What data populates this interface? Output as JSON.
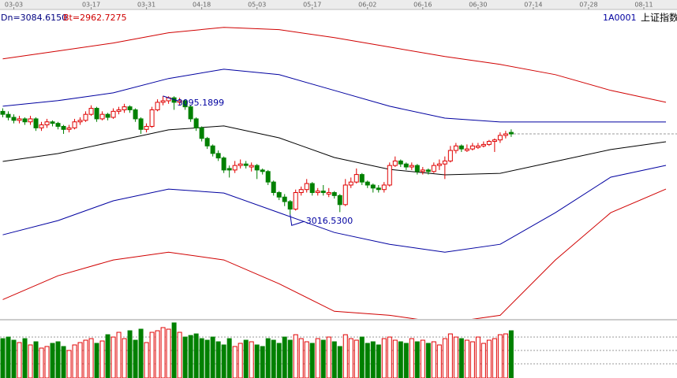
{
  "chart_data": {
    "type": "candlestick",
    "symbol": "1A0001",
    "name": "上证指数",
    "indicators": [
      {
        "label": "Dn=3084.6150",
        "color": "#000080"
      },
      {
        "label": "Bt=2962.7275",
        "color": "#d00000"
      }
    ],
    "xlim": [
      -0.5,
      122
    ],
    "xticks": [
      {
        "value": 2,
        "label": "03-03"
      },
      {
        "value": 16,
        "label": "03-17"
      },
      {
        "value": 26,
        "label": "03-31"
      },
      {
        "value": 36,
        "label": "04-18"
      },
      {
        "value": 46,
        "label": "05-03"
      },
      {
        "value": 56,
        "label": "05-17"
      },
      {
        "value": 66,
        "label": "06-02"
      },
      {
        "value": 76,
        "label": "06-16"
      },
      {
        "value": 86,
        "label": "06-30"
      },
      {
        "value": 96,
        "label": "07-14"
      },
      {
        "value": 106,
        "label": "07-28"
      },
      {
        "value": 116,
        "label": "08-11"
      }
    ],
    "ylim": [
      2947,
      3159
    ],
    "up_color": "#e00000",
    "down_color": "#008000",
    "values": [
      [
        3085,
        3087,
        3081,
        3083
      ],
      [
        3083,
        3085,
        3079,
        3081
      ],
      [
        3081,
        3083,
        3077,
        3079
      ],
      [
        3079,
        3082,
        3077,
        3080
      ],
      [
        3080,
        3081,
        3076,
        3078
      ],
      [
        3078,
        3082,
        3076,
        3080
      ],
      [
        3080,
        3081,
        3072,
        3074
      ],
      [
        3074,
        3078,
        3072,
        3076
      ],
      [
        3076,
        3080,
        3074,
        3078
      ],
      [
        3078,
        3079,
        3075,
        3077
      ],
      [
        3077,
        3078,
        3073,
        3075
      ],
      [
        3075,
        3076,
        3070,
        3073
      ],
      [
        3073,
        3076,
        3071,
        3074
      ],
      [
        3074,
        3080,
        3073,
        3078
      ],
      [
        3078,
        3081,
        3076,
        3079
      ],
      [
        3079,
        3085,
        3078,
        3083
      ],
      [
        3083,
        3089,
        3082,
        3087
      ],
      [
        3087,
        3088,
        3078,
        3080
      ],
      [
        3080,
        3085,
        3079,
        3083
      ],
      [
        3083,
        3084,
        3079,
        3081
      ],
      [
        3081,
        3087,
        3080,
        3085
      ],
      [
        3085,
        3088,
        3083,
        3086
      ],
      [
        3086,
        3090,
        3084,
        3088
      ],
      [
        3088,
        3089,
        3084,
        3086
      ],
      [
        3086,
        3087,
        3078,
        3080
      ],
      [
        3080,
        3081,
        3070,
        3073
      ],
      [
        3073,
        3077,
        3071,
        3075
      ],
      [
        3075,
        3088,
        3074,
        3086
      ],
      [
        3086,
        3093,
        3085,
        3091
      ],
      [
        3091,
        3095.1899,
        3089,
        3092
      ],
      [
        3092,
        3095,
        3090,
        3094
      ],
      [
        3094,
        3095,
        3086,
        3091
      ],
      [
        3091,
        3094,
        3089,
        3092
      ],
      [
        3092,
        3093,
        3086,
        3088
      ],
      [
        3088,
        3089,
        3078,
        3080
      ],
      [
        3080,
        3081,
        3072,
        3074
      ],
      [
        3074,
        3075,
        3065,
        3067
      ],
      [
        3067,
        3068,
        3060,
        3062
      ],
      [
        3062,
        3063,
        3055,
        3057
      ],
      [
        3057,
        3059,
        3052,
        3054
      ],
      [
        3054,
        3055,
        3044,
        3046
      ],
      [
        3047,
        3049,
        3041,
        3046
      ],
      [
        3046,
        3052,
        3044,
        3049
      ],
      [
        3049,
        3053,
        3047,
        3050
      ],
      [
        3050,
        3052,
        3047,
        3049
      ],
      [
        3048,
        3051,
        3045,
        3049
      ],
      [
        3049,
        3050,
        3040,
        3046
      ],
      [
        3046,
        3047,
        3043,
        3045
      ],
      [
        3045,
        3046,
        3036,
        3038
      ],
      [
        3038,
        3039,
        3029,
        3031
      ],
      [
        3031,
        3032,
        3026,
        3028
      ],
      [
        3028,
        3030,
        3022,
        3025
      ],
      [
        3025,
        3026,
        3016.53,
        3020
      ],
      [
        3020,
        3033,
        3019,
        3031
      ],
      [
        3031,
        3035,
        3029,
        3033
      ],
      [
        3033,
        3040,
        3031,
        3037
      ],
      [
        3037,
        3038,
        3029,
        3031
      ],
      [
        3031,
        3034,
        3029,
        3032
      ],
      [
        3032,
        3036,
        3029,
        3031
      ],
      [
        3030,
        3034,
        3028,
        3031
      ],
      [
        3031,
        3032,
        3027,
        3029
      ],
      [
        3029,
        3030,
        3018,
        3023
      ],
      [
        3023,
        3040,
        3022,
        3036
      ],
      [
        3036,
        3041,
        3034,
        3038
      ],
      [
        3038,
        3047,
        3037,
        3043
      ],
      [
        3043,
        3044,
        3036,
        3038
      ],
      [
        3038,
        3039,
        3034,
        3036
      ],
      [
        3036,
        3037,
        3031,
        3034
      ],
      [
        3034,
        3036,
        3031,
        3033
      ],
      [
        3033,
        3038,
        3031,
        3036
      ],
      [
        3036,
        3051,
        3035,
        3049
      ],
      [
        3049,
        3055,
        3048,
        3052
      ],
      [
        3052,
        3053,
        3048,
        3050
      ],
      [
        3050,
        3051,
        3046,
        3048
      ],
      [
        3048,
        3051,
        3046,
        3049
      ],
      [
        3049,
        3050,
        3043,
        3045
      ],
      [
        3045,
        3048,
        3043,
        3046
      ],
      [
        3046,
        3047,
        3043,
        3045
      ],
      [
        3045,
        3051,
        3044,
        3049
      ],
      [
        3049,
        3053,
        3046,
        3050
      ],
      [
        3050,
        3055,
        3040,
        3052
      ],
      [
        3052,
        3062,
        3051,
        3059
      ],
      [
        3059,
        3064,
        3057,
        3062
      ],
      [
        3062,
        3063,
        3058,
        3060
      ],
      [
        3059,
        3063,
        3058,
        3060
      ],
      [
        3060,
        3064,
        3059,
        3062
      ],
      [
        3061,
        3064,
        3060,
        3062
      ],
      [
        3062,
        3065,
        3061,
        3063
      ],
      [
        3063,
        3066,
        3062,
        3065
      ],
      [
        3065,
        3067,
        3058,
        3066
      ],
      [
        3066,
        3071,
        3064,
        3069
      ],
      [
        3069,
        3072,
        3067,
        3070
      ],
      [
        3071,
        3073,
        3068,
        3070
      ]
    ],
    "volume": [
      50,
      52,
      48,
      45,
      50,
      42,
      46,
      38,
      40,
      44,
      46,
      40,
      35,
      42,
      45,
      48,
      50,
      44,
      47,
      55,
      52,
      58,
      50,
      60,
      48,
      62,
      45,
      58,
      60,
      64,
      62,
      70,
      58,
      52,
      54,
      56,
      50,
      48,
      52,
      46,
      42,
      50,
      40,
      44,
      48,
      46,
      42,
      40,
      50,
      48,
      44,
      52,
      48,
      55,
      50,
      46,
      44,
      50,
      48,
      52,
      46,
      40,
      55,
      50,
      48,
      52,
      44,
      46,
      42,
      50,
      52,
      48,
      46,
      44,
      50,
      46,
      48,
      44,
      46,
      42,
      50,
      56,
      52,
      50,
      48,
      46,
      52,
      44,
      48,
      50,
      55,
      56,
      60
    ],
    "vlim": [
      0,
      72
    ],
    "vticks": [
      18,
      35,
      52
    ],
    "band_x": [
      0,
      10,
      20,
      30,
      40,
      50,
      60,
      70,
      80,
      90,
      100,
      110,
      120
    ],
    "bands": [
      {
        "color": "#d00000",
        "values": [
          3119.9,
          3125.1,
          3130.4,
          3137.2,
          3140.8,
          3139.3,
          3134.0,
          3127.7,
          3121.4,
          3116.2,
          3109.4,
          3098.9,
          3091.0
        ]
      },
      {
        "color": "#0000a0",
        "values": [
          3088.4,
          3092.1,
          3097.3,
          3106.8,
          3113.0,
          3109.4,
          3098.9,
          3088.4,
          3080.5,
          3077.9,
          3077.9,
          3077.9,
          3077.9
        ]
      },
      {
        "color": "#000000",
        "values": [
          3051.7,
          3056.9,
          3064.8,
          3072.7,
          3075.3,
          3067.4,
          3054.3,
          3046.4,
          3042.8,
          3043.8,
          3051.7,
          3059.6,
          3064.8
        ]
      },
      {
        "color": "#0000a0",
        "values": [
          3002.9,
          3012.4,
          3025.5,
          3033.3,
          3030.7,
          3017.6,
          3004.5,
          2996.6,
          2991.4,
          2996.6,
          3017.6,
          3041.2,
          3049.1
        ]
      },
      {
        "color": "#d00000",
        "values": [
          2959.9,
          2975.7,
          2986.2,
          2991.4,
          2986.2,
          2970.4,
          2952.1,
          2949.4,
          2944.2,
          2949.4,
          2986.2,
          3017.6,
          3033.3
        ]
      }
    ],
    "high_label": 3095.1899,
    "low_label": {
      "value": 3016.53,
      "label": "3016.5300"
    }
  }
}
